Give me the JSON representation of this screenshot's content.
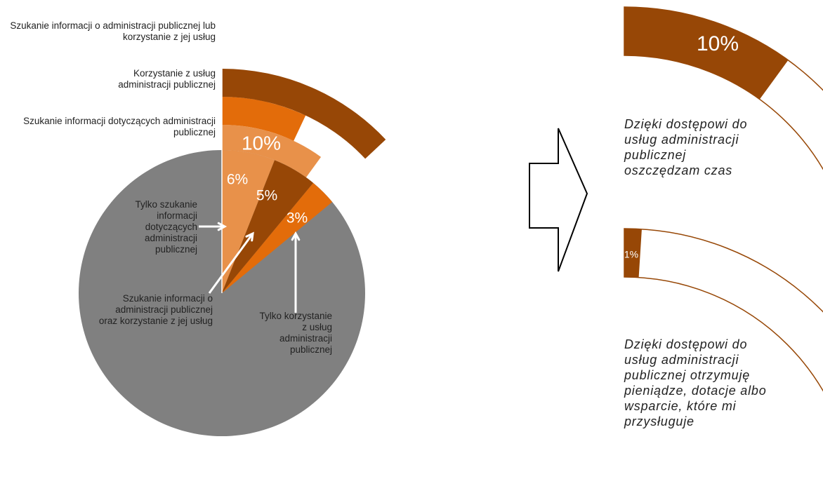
{
  "chart_data": [
    {
      "type": "pie",
      "colors": {
        "base": "#808080",
        "light": "#E8914A",
        "dark": "#974706",
        "orange": "#E36C0A"
      },
      "segments": [
        {
          "id": "only-search",
          "value": 6,
          "label": "6%",
          "color": "#E8914A"
        },
        {
          "id": "search-and-use",
          "value": 5,
          "label": "5%",
          "color": "#974706"
        },
        {
          "id": "only-use",
          "value": 3,
          "label": "3%",
          "color": "#E36C0A"
        }
      ],
      "outer_rings": [
        {
          "id": "search-total",
          "value": 10,
          "label": "10%",
          "color": "#E8914A"
        },
        {
          "id": "use-total",
          "value": 7,
          "label": "7%",
          "color": "#E36C0A"
        },
        {
          "id": "any-total",
          "value": 13,
          "label": "13%",
          "color": "#974706"
        }
      ],
      "labels": {
        "any_total": "Szukanie informacji o administracji publicznej lub korzystanie z jej usług",
        "use_total": "Korzystanie z usług administracji publicznej",
        "search_total": "Szukanie informacji dotyczących administracji publicznej",
        "only_search": "Tylko szukanie informacji dotyczących administracji publicznej",
        "search_and_use": "Szukanie informacji o administracji publicznej oraz korzystanie z jej usług",
        "only_use": "Tylko korzystanie z usług administracji publicznej"
      }
    },
    {
      "type": "pie",
      "gauges": [
        {
          "id": "time-saved",
          "value": 10,
          "label": "10%",
          "color": "#974706",
          "caption": "Dzięki dostępowi do usług administracji publicznej oszczędzam czas"
        },
        {
          "id": "money-received",
          "value": 1,
          "label": "1%",
          "color": "#974706",
          "caption": "Dzięki dostępowi do usług administracji publicznej otrzymuję pieniądze, dotacje albo wsparcie, które mi przysługuje"
        }
      ]
    }
  ]
}
